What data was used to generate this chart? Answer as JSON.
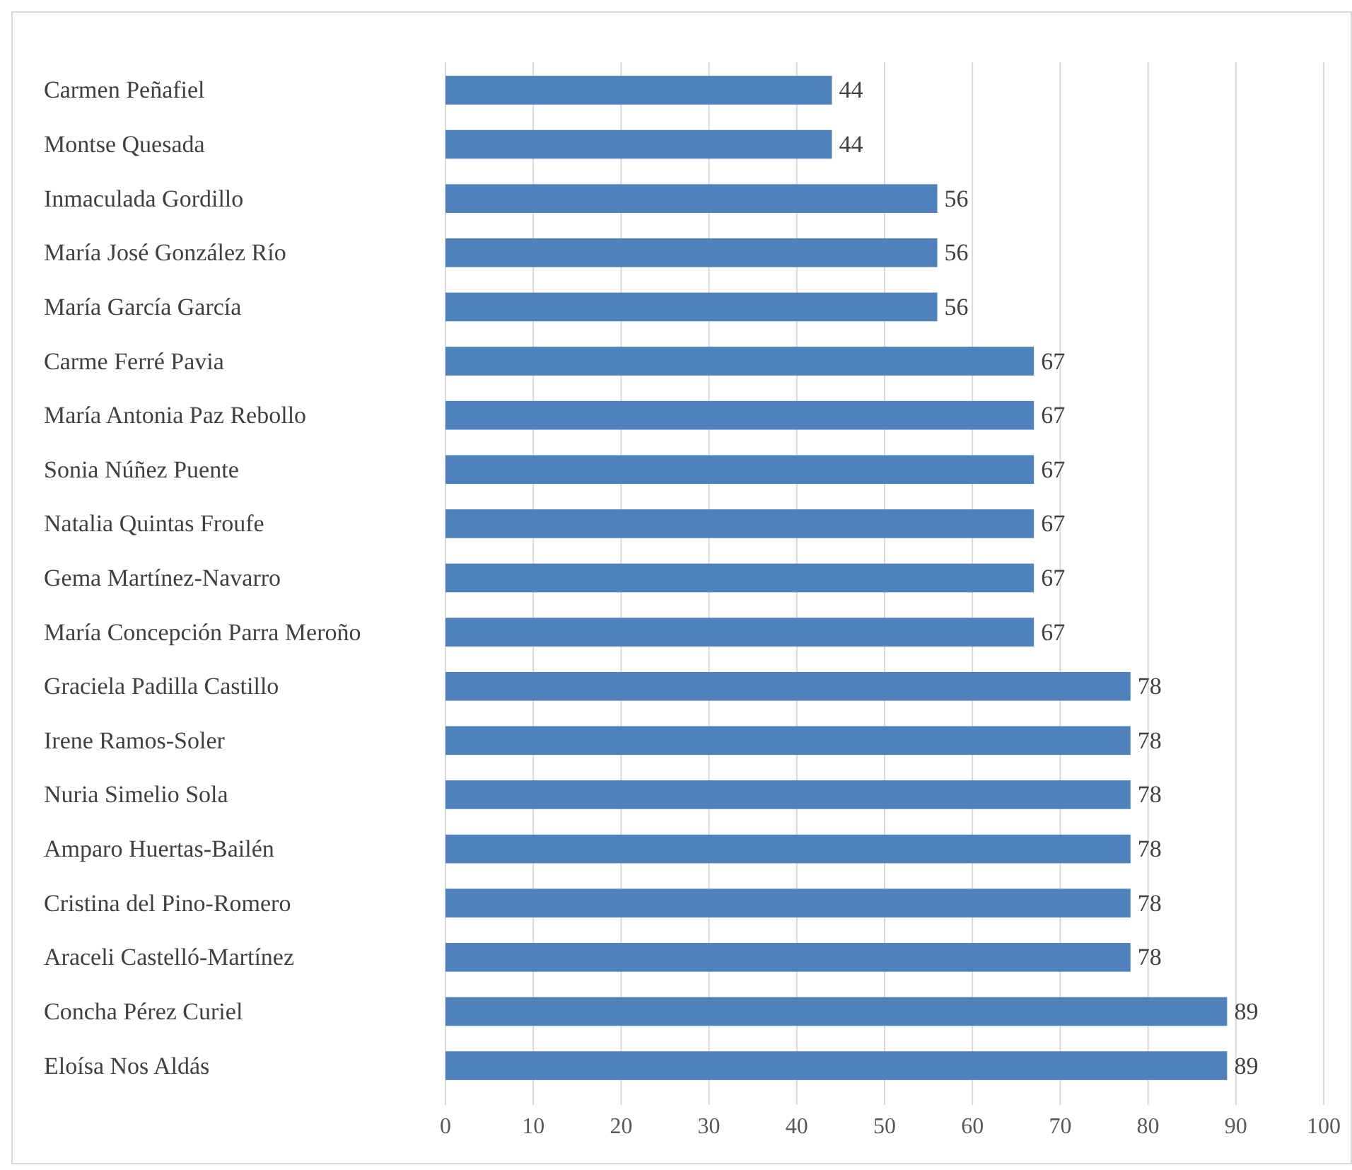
{
  "chart_data": {
    "type": "bar",
    "orientation": "horizontal",
    "categories": [
      "Carmen Peñafiel",
      "Montse Quesada",
      "Inmaculada Gordillo",
      "María José González Río",
      "María García García",
      "Carme Ferré Pavia",
      "María Antonia Paz Rebollo",
      "Sonia Núñez Puente",
      "Natalia Quintas Froufe",
      "Gema Martínez-Navarro",
      "María Concepción Parra Meroño",
      "Graciela Padilla Castillo",
      "Irene Ramos-Soler",
      "Nuria Simelio Sola",
      "Amparo Huertas-Bailén",
      "Cristina del Pino-Romero",
      "Araceli Castelló-Martínez",
      "Concha Pérez Curiel",
      "Eloísa Nos Aldás"
    ],
    "values": [
      44,
      44,
      56,
      56,
      56,
      67,
      67,
      67,
      67,
      67,
      67,
      78,
      78,
      78,
      78,
      78,
      78,
      89,
      89
    ],
    "color": "#4f81bd",
    "xlim": [
      0,
      100
    ],
    "xticks": [
      0,
      10,
      20,
      30,
      40,
      50,
      60,
      70,
      80,
      90,
      100
    ],
    "grid": "x",
    "data_labels": true
  }
}
